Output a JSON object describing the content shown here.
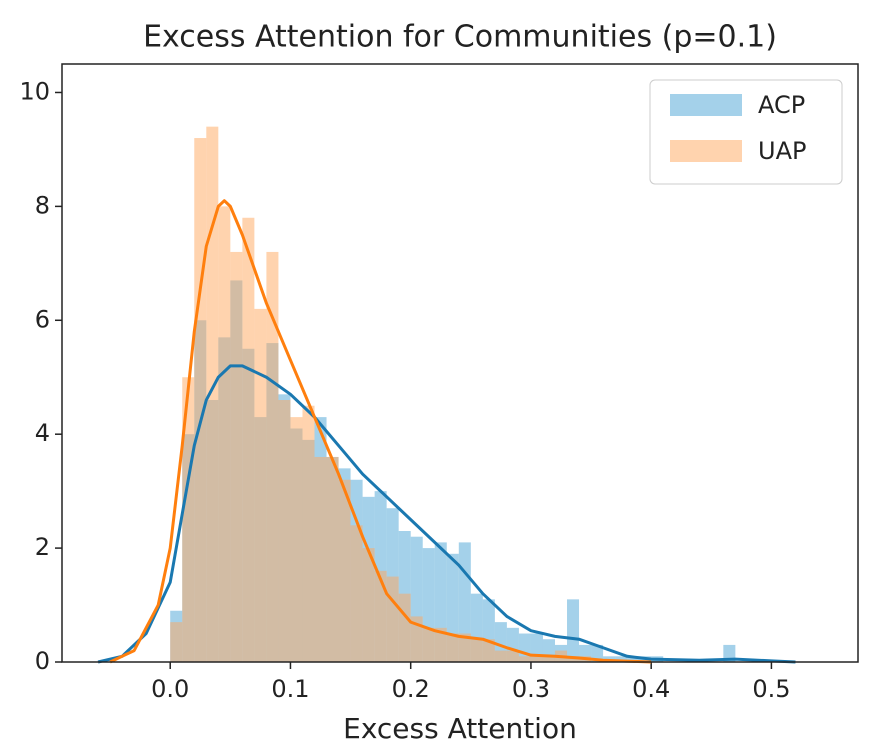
{
  "chart_data": {
    "type": "histogram",
    "title": "Excess Attention for Communities (p=0.1)",
    "x_label": "Excess Attention",
    "bins": [
      0,
      0.01,
      0.02,
      0.03,
      0.04,
      0.05,
      0.06,
      0.07,
      0.08,
      0.09,
      0.1,
      0.11,
      0.12,
      0.13,
      0.14,
      0.15,
      0.16,
      0.17,
      0.18,
      0.19,
      0.2,
      0.21,
      0.22,
      0.23,
      0.24,
      0.25,
      0.26,
      0.27,
      0.28,
      0.29,
      0.3,
      0.31,
      0.32,
      0.33,
      0.34,
      0.35,
      0.36,
      0.37,
      0.38,
      0.39,
      0.4,
      0.41,
      0.42,
      0.43,
      0.44,
      0.45,
      0.46,
      0.47
    ],
    "series": [
      {
        "name": "ACP",
        "color": "#4aa3d6",
        "line_color": "#1a78b0",
        "values": [
          0.9,
          4.0,
          6.0,
          4.6,
          5.7,
          6.7,
          5.5,
          4.3,
          5.6,
          4.7,
          4.1,
          3.9,
          4.3,
          3.6,
          3.4,
          3.2,
          2.9,
          3.0,
          2.7,
          2.3,
          2.2,
          2.0,
          2.1,
          1.9,
          2.1,
          1.2,
          1.1,
          0.7,
          0.6,
          0.5,
          0.5,
          0.4,
          0.3,
          1.1,
          0.3,
          0.3,
          0.1,
          0.1,
          0.1,
          0.1,
          0.1,
          0,
          0,
          0,
          0,
          0,
          0.3
        ],
        "kde": {
          "x": [
            -0.06,
            -0.04,
            -0.02,
            0.0,
            0.01,
            0.02,
            0.03,
            0.04,
            0.05,
            0.06,
            0.08,
            0.1,
            0.12,
            0.14,
            0.16,
            0.18,
            0.2,
            0.22,
            0.24,
            0.26,
            0.28,
            0.3,
            0.32,
            0.34,
            0.36,
            0.38,
            0.4,
            0.44,
            0.47,
            0.5,
            0.52
          ],
          "y": [
            0.0,
            0.1,
            0.5,
            1.4,
            2.6,
            3.8,
            4.6,
            5.0,
            5.2,
            5.2,
            5.0,
            4.7,
            4.3,
            3.8,
            3.3,
            2.9,
            2.5,
            2.1,
            1.7,
            1.2,
            0.8,
            0.55,
            0.45,
            0.4,
            0.25,
            0.1,
            0.05,
            0.03,
            0.05,
            0.02,
            0.0
          ]
        }
      },
      {
        "name": "UAP",
        "color": "#ffa75e",
        "line_color": "#ff7f0e",
        "values": [
          0.7,
          5.0,
          9.2,
          9.4,
          8.0,
          7.2,
          7.8,
          6.2,
          7.2,
          4.6,
          4.3,
          4.5,
          3.6,
          3.6,
          3.2,
          2.4,
          2.0,
          1.6,
          1.5,
          1.2,
          0.8,
          0.6,
          0.6,
          0.5,
          0.5,
          0.4,
          0.4,
          0.2,
          0.2,
          0.1,
          0.1,
          0.1,
          0.2,
          0.1,
          0.1,
          0,
          0,
          0,
          0,
          0,
          0,
          0,
          0,
          0,
          0,
          0,
          0
        ],
        "kde": {
          "x": [
            -0.05,
            -0.03,
            -0.01,
            0.0,
            0.01,
            0.02,
            0.03,
            0.04,
            0.045,
            0.05,
            0.06,
            0.08,
            0.1,
            0.12,
            0.14,
            0.16,
            0.18,
            0.2,
            0.22,
            0.24,
            0.26,
            0.28,
            0.3,
            0.32,
            0.34,
            0.36,
            0.4
          ],
          "y": [
            0.0,
            0.2,
            1.0,
            2.0,
            3.8,
            5.8,
            7.3,
            8.0,
            8.1,
            8.0,
            7.5,
            6.3,
            5.3,
            4.3,
            3.3,
            2.2,
            1.2,
            0.7,
            0.55,
            0.45,
            0.4,
            0.25,
            0.12,
            0.1,
            0.07,
            0.03,
            0.0
          ]
        }
      }
    ],
    "xlim": [
      -0.09,
      0.572
    ],
    "ylim": [
      0,
      10.5
    ],
    "xticks": [
      {
        "value": 0,
        "label": "0.0"
      },
      0.1,
      0.2,
      0.3,
      0.4,
      0.5
    ],
    "yticks": [
      0,
      2,
      4,
      6,
      8,
      10
    ],
    "legend": "upper right"
  }
}
